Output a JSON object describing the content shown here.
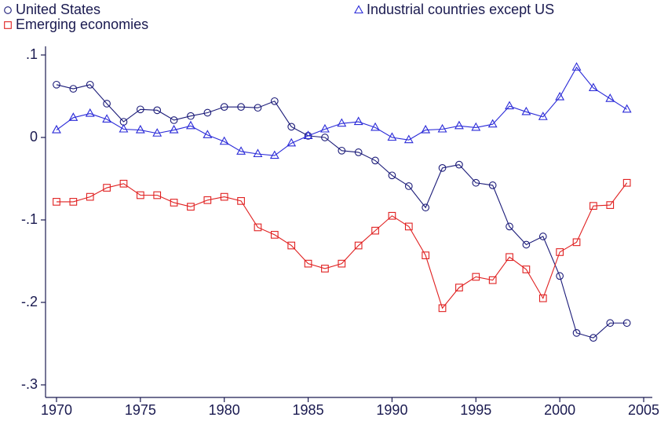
{
  "chart_data": {
    "type": "line",
    "x": [
      1970,
      1971,
      1972,
      1973,
      1974,
      1975,
      1976,
      1977,
      1978,
      1979,
      1980,
      1981,
      1982,
      1983,
      1984,
      1985,
      1986,
      1987,
      1988,
      1989,
      1990,
      1991,
      1992,
      1993,
      1994,
      1995,
      1996,
      1997,
      1998,
      1999,
      2000,
      2001,
      2002,
      2003,
      2004
    ],
    "series": [
      {
        "name": "United States",
        "color": "#1a1a78",
        "marker": "circle",
        "values": [
          0.064,
          0.059,
          0.064,
          0.041,
          0.019,
          0.034,
          0.033,
          0.021,
          0.026,
          0.03,
          0.037,
          0.037,
          0.036,
          0.044,
          0.013,
          0.002,
          0,
          -0.016,
          -0.018,
          -0.028,
          -0.046,
          -0.059,
          -0.085,
          -0.037,
          -0.033,
          -0.055,
          -0.058,
          -0.108,
          -0.13,
          -0.12,
          -0.168,
          -0.237,
          -0.243,
          -0.225,
          -0.225
        ]
      },
      {
        "name": "Industrial countries except US",
        "color": "#2a2ad8",
        "marker": "triangle",
        "values": [
          0.009,
          0.024,
          0.029,
          0.022,
          0.01,
          0.009,
          0.005,
          0.009,
          0.014,
          0.003,
          -0.005,
          -0.017,
          -0.02,
          -0.022,
          -0.007,
          0.002,
          0.01,
          0.017,
          0.019,
          0.012,
          0,
          -0.003,
          0.009,
          0.01,
          0.014,
          0.012,
          0.016,
          0.038,
          0.031,
          0.025,
          0.049,
          0.085,
          0.06,
          0.047,
          0.034
        ]
      },
      {
        "name": "Emerging economies",
        "color": "#e02020",
        "marker": "square",
        "values": [
          -0.078,
          -0.078,
          -0.072,
          -0.061,
          -0.056,
          -0.07,
          -0.07,
          -0.079,
          -0.084,
          -0.076,
          -0.072,
          -0.077,
          -0.109,
          -0.118,
          -0.131,
          -0.153,
          -0.159,
          -0.153,
          -0.131,
          -0.113,
          -0.095,
          -0.108,
          -0.143,
          -0.207,
          -0.182,
          -0.169,
          -0.173,
          -0.145,
          -0.16,
          -0.195,
          -0.139,
          -0.127,
          -0.083,
          -0.082,
          -0.055
        ]
      }
    ],
    "xlim": [
      1969.5,
      2005.5
    ],
    "xticks": [
      1970,
      1975,
      1980,
      1985,
      1990,
      1995,
      2000,
      2005
    ],
    "ylim": [
      -0.315,
      0.11
    ],
    "yticks": [
      {
        "value": 0.1,
        "label": ".1"
      },
      0,
      {
        "value": -0.1,
        "label": "-.1"
      },
      {
        "value": -0.2,
        "label": "-.2"
      },
      {
        "value": -0.3,
        "label": "-.3"
      }
    ],
    "grid": false
  }
}
